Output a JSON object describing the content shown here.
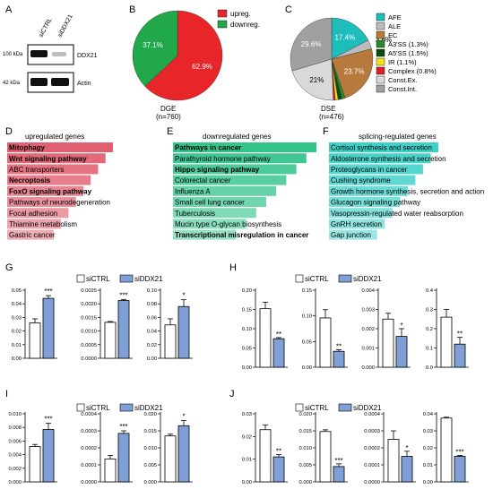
{
  "panels": {
    "A": {
      "letter": "A",
      "lanes": [
        "siCTRL",
        "siDDX21"
      ],
      "bands": [
        {
          "name": "DDX21",
          "marker": "100 kDa"
        },
        {
          "name": "Actin",
          "marker": "42 kDa"
        }
      ]
    },
    "B": {
      "letter": "B",
      "legend": [
        "upreg.",
        "downreg."
      ],
      "colors": [
        "#e8262a",
        "#21a84a"
      ],
      "caption": "DGE",
      "n": "(n=760)"
    },
    "C": {
      "letter": "C",
      "caption": "DSE",
      "n": "(n=476)",
      "legend": [
        "AFE",
        "ALE",
        "EC",
        "A3'SS (1.3%)",
        "A5'SS (1.5%)",
        "IR (1.1%)",
        "Complex (0.8%)",
        "Const.Ex.",
        "Const.Int."
      ],
      "colors": [
        "#1fbcbc",
        "#bcbcbc",
        "#b87a3c",
        "#2a8a2a",
        "#0f4d0f",
        "#efe21a",
        "#e02020",
        "#d9d9d9",
        "#a0a0a0"
      ]
    },
    "D": {
      "letter": "D",
      "title": "upregulated genes",
      "color": "#e06070",
      "items": [
        {
          "label": "Mitophagy",
          "bold": true
        },
        {
          "label": "Wnt signaling pathway",
          "bold": true
        },
        {
          "label": "ABC transporters",
          "bold": false
        },
        {
          "label": "Necroptosis",
          "bold": true
        },
        {
          "label": "FoxO signaling pathway",
          "bold": true
        },
        {
          "label": "Pathways of neurodegeneration",
          "bold": false
        },
        {
          "label": "Focal adhesion",
          "bold": false
        },
        {
          "label": "Thiamine metabolism",
          "bold": false
        },
        {
          "label": "Gastric cancer",
          "bold": false
        }
      ]
    },
    "E": {
      "letter": "E",
      "title": "downregulated genes",
      "color": "#35c48c",
      "items": [
        {
          "label": "Pathways in cancer",
          "bold": true
        },
        {
          "label": "Parathyroid hormone pathway",
          "bold": false
        },
        {
          "label": "Hippo signaling pathway",
          "bold": true
        },
        {
          "label": "Colorectal cancer",
          "bold": false
        },
        {
          "label": "Influenza A",
          "bold": false
        },
        {
          "label": "Small cell lung cancer",
          "bold": false
        },
        {
          "label": "Tuberculosis",
          "bold": false
        },
        {
          "label": "Mucin type O-glycan biosynthesis",
          "bold": false
        },
        {
          "label": "Transcriptional misregulation in cancer",
          "bold": true
        }
      ]
    },
    "F": {
      "letter": "F",
      "title": "splicing-regulated genes",
      "color": "#3fd0c8",
      "items": [
        {
          "label": "Cortisol synthesis and secretion",
          "bold": false
        },
        {
          "label": "Aldosterone synthesis and secretion",
          "bold": false
        },
        {
          "label": "Proteoglycans in cancer",
          "bold": false
        },
        {
          "label": "Cushing syndrome",
          "bold": false
        },
        {
          "label": "Growth hormone synthesis, secretion and action",
          "bold": false
        },
        {
          "label": "Glucagon signaling pathway",
          "bold": false
        },
        {
          "label": "Vasopressin-regulated water reabsorption",
          "bold": false
        },
        {
          "label": "GnRH secretion",
          "bold": false
        },
        {
          "label": "Gap junction",
          "bold": false
        }
      ]
    },
    "G": {
      "letter": "G"
    },
    "H": {
      "letter": "H"
    },
    "I": {
      "letter": "I"
    },
    "J": {
      "letter": "J"
    }
  },
  "bar_legend": {
    "control": "siCTRL",
    "treatment": "siDDX21",
    "control_color": "#ffffff",
    "treatment_color": "#7f9fd6"
  },
  "chart_data": [
    {
      "type": "pie",
      "panel": "B",
      "labels": [
        "upreg.",
        "downreg."
      ],
      "values": [
        62.9,
        37.1
      ],
      "value_labels": [
        "62.9%",
        "37.1%"
      ],
      "colors": [
        "#e8262a",
        "#21a84a"
      ]
    },
    {
      "type": "pie",
      "panel": "C",
      "labels": [
        "AFE",
        "ALE",
        "EC",
        "A3'SS",
        "A5'SS",
        "IR",
        "Complex",
        "Const.Ex.",
        "Const.Int."
      ],
      "values": [
        17.4,
        3.6,
        23.7,
        1.3,
        1.5,
        1.1,
        0.8,
        21.0,
        29.6
      ],
      "value_labels": [
        "17.4%",
        "3.6%",
        "23.7%",
        "",
        "",
        "",
        "",
        "21%",
        "29.6%"
      ]
    },
    {
      "type": "bar",
      "panel": "G",
      "index": 0,
      "yticks": [
        "0.00",
        "0.01",
        "0.02",
        "0.03",
        "0.04",
        "0.05"
      ],
      "ylim": [
        0,
        0.05
      ],
      "series": [
        {
          "name": "siCTRL",
          "values": [
            0.026
          ],
          "err": [
            0.003
          ]
        },
        {
          "name": "siDDX21",
          "values": [
            0.044
          ],
          "err": [
            0.002
          ]
        }
      ],
      "sig": "***"
    },
    {
      "type": "bar",
      "panel": "G",
      "index": 1,
      "yticks": [
        "0.0000",
        "0.0005",
        "0.0010",
        "0.0015",
        "0.0020",
        "0.0025"
      ],
      "ylim": [
        0,
        0.0025
      ],
      "series": [
        {
          "name": "siCTRL",
          "values": [
            0.00132
          ],
          "err": [
            3e-05
          ]
        },
        {
          "name": "siDDX21",
          "values": [
            0.00212
          ],
          "err": [
            4e-05
          ]
        }
      ],
      "sig": "***"
    },
    {
      "type": "bar",
      "panel": "G",
      "index": 2,
      "yticks": [
        "0.00",
        "0.02",
        "0.04",
        "0.06",
        "0.08",
        "0.10"
      ],
      "ylim": [
        0,
        0.1
      ],
      "series": [
        {
          "name": "siCTRL",
          "values": [
            0.049
          ],
          "err": [
            0.009
          ]
        },
        {
          "name": "siDDX21",
          "values": [
            0.076
          ],
          "err": [
            0.01
          ]
        }
      ],
      "sig": "*"
    },
    {
      "type": "bar",
      "panel": "H",
      "index": 0,
      "yticks": [
        "0.00",
        "0.05",
        "0.10",
        "0.15",
        "0.20"
      ],
      "ylim": [
        0,
        0.2
      ],
      "series": [
        {
          "name": "siCTRL",
          "values": [
            0.152
          ],
          "err": [
            0.017
          ]
        },
        {
          "name": "siDDX21",
          "values": [
            0.074
          ],
          "err": [
            0.003
          ]
        }
      ],
      "sig": "**"
    },
    {
      "type": "bar",
      "panel": "H",
      "index": 1,
      "yticks": [
        "0.00",
        "0.05",
        "0.10",
        "0.15"
      ],
      "ylim": [
        0,
        0.15
      ],
      "series": [
        {
          "name": "siCTRL",
          "values": [
            0.096
          ],
          "err": [
            0.016
          ]
        },
        {
          "name": "siDDX21",
          "values": [
            0.031
          ],
          "err": [
            0.003
          ]
        }
      ],
      "sig": "**"
    },
    {
      "type": "bar",
      "panel": "H",
      "index": 2,
      "yticks": [
        "0.000",
        "0.001",
        "0.002",
        "0.003",
        "0.004"
      ],
      "ylim": [
        0,
        0.004
      ],
      "series": [
        {
          "name": "siCTRL",
          "values": [
            0.0025
          ],
          "err": [
            0.0003
          ]
        },
        {
          "name": "siDDX21",
          "values": [
            0.0016
          ],
          "err": [
            0.0004
          ]
        }
      ],
      "sig": "*"
    },
    {
      "type": "bar",
      "panel": "H",
      "index": 3,
      "yticks": [
        "0.0",
        "0.1",
        "0.2",
        "0.3",
        "0.4"
      ],
      "ylim": [
        0,
        0.4
      ],
      "series": [
        {
          "name": "siCTRL",
          "values": [
            0.26
          ],
          "err": [
            0.04
          ]
        },
        {
          "name": "siDDX21",
          "values": [
            0.12
          ],
          "err": [
            0.035
          ]
        }
      ],
      "sig": "**"
    },
    {
      "type": "bar",
      "panel": "I",
      "index": 0,
      "yticks": [
        "0.000",
        "0.002",
        "0.004",
        "0.006",
        "0.008",
        "0.010"
      ],
      "ylim": [
        0,
        0.01
      ],
      "series": [
        {
          "name": "siCTRL",
          "values": [
            0.0052
          ],
          "err": [
            0.0003
          ]
        },
        {
          "name": "siDDX21",
          "values": [
            0.0077
          ],
          "err": [
            0.0009
          ]
        }
      ],
      "sig": "***"
    },
    {
      "type": "bar",
      "panel": "I",
      "index": 1,
      "yticks": [
        "0.0000",
        "0.0001",
        "0.0002",
        "0.0003",
        "0.0004"
      ],
      "ylim": [
        0,
        0.0004
      ],
      "series": [
        {
          "name": "siCTRL",
          "values": [
            0.000135
          ],
          "err": [
            2e-05
          ]
        },
        {
          "name": "siDDX21",
          "values": [
            0.000285
          ],
          "err": [
            1.5e-05
          ]
        }
      ],
      "sig": "***"
    },
    {
      "type": "bar",
      "panel": "I",
      "index": 2,
      "yticks": [
        "0.000",
        "0.005",
        "0.010",
        "0.015",
        "0.020"
      ],
      "ylim": [
        0,
        0.02
      ],
      "series": [
        {
          "name": "siCTRL",
          "values": [
            0.0135
          ],
          "err": [
            0.0005
          ]
        },
        {
          "name": "siDDX21",
          "values": [
            0.0165
          ],
          "err": [
            0.0015
          ]
        }
      ],
      "sig": "*"
    },
    {
      "type": "bar",
      "panel": "J",
      "index": 0,
      "yticks": [
        "0.00",
        "0.01",
        "0.02",
        "0.03"
      ],
      "ylim": [
        0,
        0.03
      ],
      "series": [
        {
          "name": "siCTRL",
          "values": [
            0.023
          ],
          "err": [
            0.002
          ]
        },
        {
          "name": "siDDX21",
          "values": [
            0.011
          ],
          "err": [
            0.001
          ]
        }
      ],
      "sig": "**"
    },
    {
      "type": "bar",
      "panel": "J",
      "index": 1,
      "yticks": [
        "0.000",
        "0.005",
        "0.010",
        "0.015",
        "0.020"
      ],
      "ylim": [
        0,
        0.02
      ],
      "series": [
        {
          "name": "siCTRL",
          "values": [
            0.0148
          ],
          "err": [
            0.0005
          ]
        },
        {
          "name": "siDDX21",
          "values": [
            0.0045
          ],
          "err": [
            0.0008
          ]
        }
      ],
      "sig": "***"
    },
    {
      "type": "bar",
      "panel": "J",
      "index": 2,
      "yticks": [
        "0.0000",
        "0.0001",
        "0.0002",
        "0.0003",
        "0.0004"
      ],
      "ylim": [
        0,
        0.0004
      ],
      "series": [
        {
          "name": "siCTRL",
          "values": [
            0.00025
          ],
          "err": [
            5e-05
          ]
        },
        {
          "name": "siDDX21",
          "values": [
            0.00015
          ],
          "err": [
            3e-05
          ]
        }
      ],
      "sig": "*"
    },
    {
      "type": "bar",
      "panel": "J",
      "index": 3,
      "yticks": [
        "0.00",
        "0.01",
        "0.02",
        "0.03",
        "0.04"
      ],
      "ylim": [
        0,
        0.04
      ],
      "series": [
        {
          "name": "siCTRL",
          "values": [
            0.0375
          ],
          "err": [
            0.0005
          ]
        },
        {
          "name": "siDDX21",
          "values": [
            0.015
          ],
          "err": [
            0.0005
          ]
        }
      ],
      "sig": "***"
    }
  ]
}
